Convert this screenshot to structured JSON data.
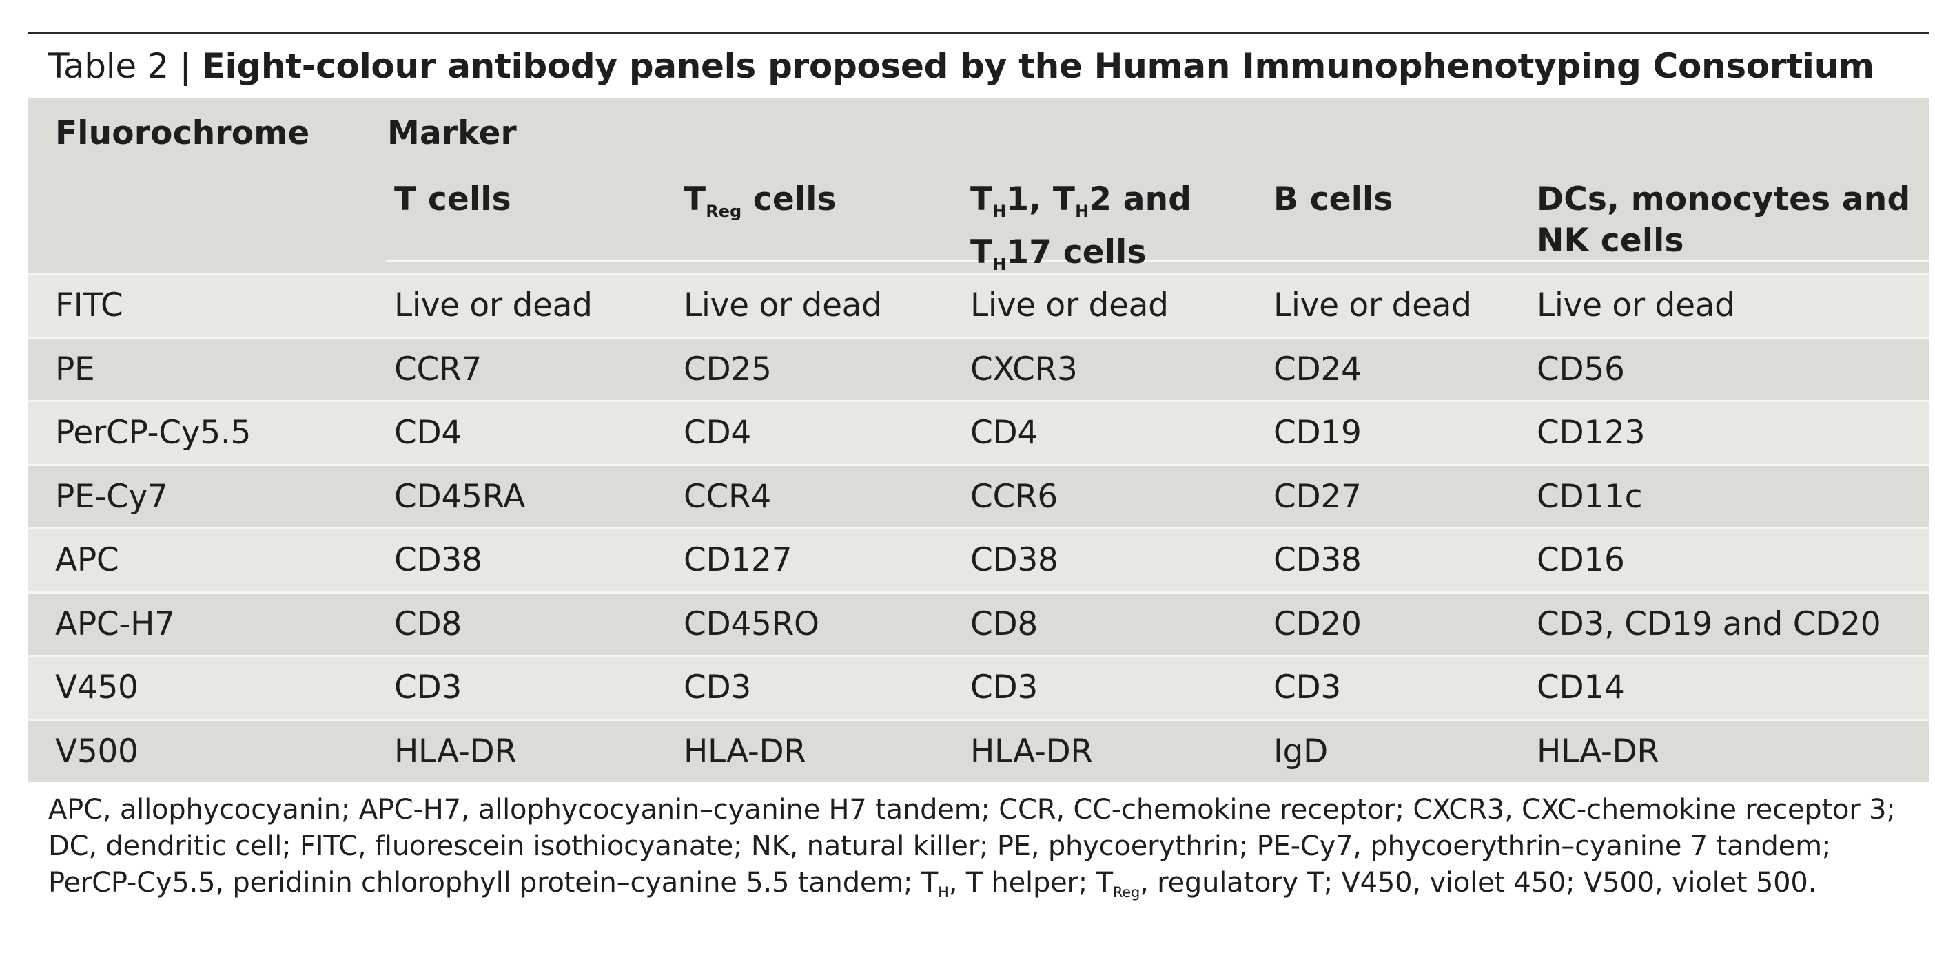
{
  "caption": {
    "label": "Table 2 | ",
    "title": "Eight-colour antibody panels proposed by the Human Immunophenotyping Consortium"
  },
  "header": {
    "fluorochrome": "Fluorochrome",
    "marker": "Marker",
    "t_cells": "T cells",
    "treg_t": "T",
    "treg_sub": "Reg",
    "treg_rest": " cells",
    "th_a": "T",
    "th_a_sub": "H",
    "th_b": "1, T",
    "th_b_sub": "H",
    "th_c": "2 and",
    "th_d": "T",
    "th_d_sub": "H",
    "th_e": "17 cells",
    "b_cells": "B cells",
    "dc_line1": "DCs, monocytes and",
    "dc_line2": "NK cells"
  },
  "rows": [
    {
      "fluor": "FITC",
      "t": "Live or dead",
      "treg": "Live or dead",
      "th": "Live or dead",
      "b": "Live or dead",
      "dc": "Live or dead"
    },
    {
      "fluor": "PE",
      "t": "CCR7",
      "treg": "CD25",
      "th": "CXCR3",
      "b": "CD24",
      "dc": "CD56"
    },
    {
      "fluor": "PerCP-Cy5.5",
      "t": "CD4",
      "treg": "CD4",
      "th": "CD4",
      "b": "CD19",
      "dc": "CD123"
    },
    {
      "fluor": "PE-Cy7",
      "t": "CD45RA",
      "treg": "CCR4",
      "th": "CCR6",
      "b": "CD27",
      "dc": "CD11c"
    },
    {
      "fluor": "APC",
      "t": "CD38",
      "treg": "CD127",
      "th": "CD38",
      "b": "CD38",
      "dc": "CD16"
    },
    {
      "fluor": "APC-H7",
      "t": "CD8",
      "treg": "CD45RO",
      "th": "CD8",
      "b": "CD20",
      "dc": "CD3, CD19 and CD20"
    },
    {
      "fluor": "V450",
      "t": "CD3",
      "treg": "CD3",
      "th": "CD3",
      "b": "CD3",
      "dc": "CD14"
    },
    {
      "fluor": "V500",
      "t": "HLA-DR",
      "treg": "HLA-DR",
      "th": "HLA-DR",
      "b": "IgD",
      "dc": "HLA-DR"
    }
  ],
  "footnote": {
    "part1": "APC, allophycocyanin; APC-H7, allophycocyanin–cyanine H7 tandem; CCR, CC-chemokine receptor; CXCR3, CXC-chemokine receptor 3; DC, dendritic cell; FITC, fluorescein isothiocyanate; NK, natural killer; PE, phycoerythrin; PE-Cy7, phycoerythrin–cyanine 7 tandem; PerCP-Cy5.5, peridinin chlorophyll protein–cyanine 5.5 tandem; T",
    "sub1": "H",
    "part2": ", T helper; T",
    "sub2": "Reg",
    "part3": ", regulatory T; V450, violet 450; V500, violet 500."
  },
  "colors": {
    "panel_light": "#e8e8e3",
    "panel_shade": "#dcdcd6",
    "separator": "#f6f6f2",
    "text": "#1e1e1e"
  }
}
